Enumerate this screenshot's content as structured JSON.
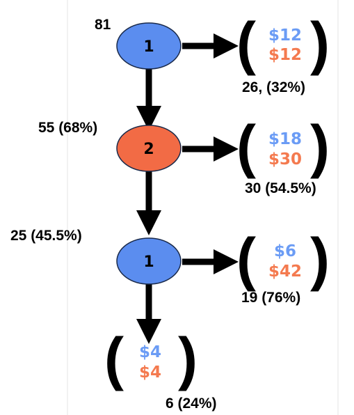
{
  "colors": {
    "player1_node": "#5b8def",
    "player2_node": "#f26b45",
    "payoff_top": "#6b9cf5",
    "payoff_bottom": "#f47a4f",
    "arrow": "#000000",
    "node_stroke": "#1a2a4a"
  },
  "tree": {
    "start_count": "81",
    "nodes": [
      {
        "label": "1",
        "player": 1,
        "stop_count": "26, (32%)",
        "continue_count": "55 (68%)",
        "payoff": {
          "top": "$12",
          "bottom": "$12"
        }
      },
      {
        "label": "2",
        "player": 2,
        "stop_count": "30 (54.5%)",
        "continue_count": "25 (45.5%)",
        "payoff": {
          "top": "$18",
          "bottom": "$30"
        }
      },
      {
        "label": "1",
        "player": 1,
        "stop_count": "19 (76%)",
        "continue_count": "6 (24%)",
        "payoff": {
          "top": "$6",
          "bottom": "$42"
        }
      }
    ],
    "terminal": {
      "top": "$4",
      "bottom": "$4"
    }
  }
}
